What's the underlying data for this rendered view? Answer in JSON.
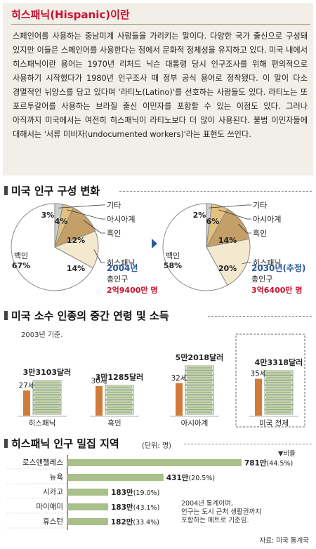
{
  "intro": {
    "title": "히스패닉(Hispanic)이란",
    "body": "스페인어를 사용하는 중남미계 사람들을 가리키는 말이다. 다양한 국가 출신으로 구성돼 있지만 이들은 스페인어를 사용한다는 점에서 문화적 정체성을 유지하고 있다. 미국 내에서 히스패닉이란 용어는 1970년 리처드 닉슨 대통령 당시 인구조사를 위해 편의적으로 사용하기 시작했다가 1980년 인구조사 때 정부 공식 용어로 정착됐다. 이 말이 다소 경멸적인 뉘앙스를 담고 있다며 '라티노(Latino)'를 선호하는 사람들도 있다. 라티노는 또 포르투갈어를 사용하는 브라질 출신 이민자를 포함할 수 있는 이점도 있다. 그러나 아직까지 미국에서는 여전히 히스패닉이 라티노보다 더 많이 사용된다. 불법 이민자들에 대해서는 '서류 미비자(undocumented workers)'라는 표현도 쓰인다."
  },
  "section1": {
    "title": "미국 인구 구성 변화"
  },
  "section2": {
    "title": "미국 소수 인종의 중간 연령 및 소득",
    "note": "2003년 기준."
  },
  "section3": {
    "title": "히스패닉 인구 밀집 지역",
    "unit": "(단위: 명)",
    "ratio_label": "▼비율",
    "footnote1": "2004년 통계이며,",
    "footnote2": "인구는 도시 근처 생활권까지",
    "footnote3": "포함하는 메트로 기준임."
  },
  "source": "자료: 미국 통계국",
  "colors": {
    "white": "#ffffff",
    "gold": "#e2c27e",
    "tan": "#c49f68",
    "cream": "#f4e9cf",
    "grey": "#cfcfcf",
    "bar_orange": "#d27a3a",
    "bar_green": "#a9c08a",
    "red": "#c8102e",
    "blue": "#2b5a9a"
  },
  "chart_data": [
    {
      "type": "pie",
      "year_label": "2004년",
      "total_label": "총인구",
      "total_value": "2억9400만 명",
      "slices": [
        {
          "name": "백인",
          "value": 67,
          "label": "67%"
        },
        {
          "name": "기타",
          "value": 3,
          "label": "3%"
        },
        {
          "name": "아시아계",
          "value": 4,
          "label": "4%"
        },
        {
          "name": "흑인",
          "value": 12,
          "label": "12%"
        },
        {
          "name": "히스패닉",
          "value": 14,
          "label": "14%"
        }
      ]
    },
    {
      "type": "pie",
      "year_label": "2030년(추정)",
      "total_label": "총인구",
      "total_value": "3억6400만 명",
      "slices": [
        {
          "name": "백인",
          "value": 58,
          "label": "58%"
        },
        {
          "name": "기타",
          "value": 2,
          "label": "2%"
        },
        {
          "name": "아시아계",
          "value": 6,
          "label": "6%"
        },
        {
          "name": "흑인",
          "value": 14,
          "label": "14%"
        },
        {
          "name": "히스패닉",
          "value": 20,
          "label": "20%"
        }
      ]
    },
    {
      "type": "bar",
      "categories": [
        "히스패닉",
        "흑인",
        "아시아계",
        "미국 전체"
      ],
      "series": [
        {
          "values": [
            27,
            30,
            32,
            35
          ],
          "labels": [
            "27세",
            "30세",
            "32세",
            "35세"
          ]
        },
        {
          "values": [
            33103,
            31285,
            52018,
            43318
          ],
          "labels": [
            "3만3103달러",
            "3만1285달러",
            "5만2018달러",
            "4만3318달러"
          ]
        }
      ]
    },
    {
      "type": "bar",
      "categories": [
        "로스앤젤레스",
        "뉴욕",
        "시카고",
        "마이애미",
        "휴스턴"
      ],
      "values": [
        7810000,
        4310000,
        1830000,
        1830000,
        1820000
      ],
      "value_labels": [
        "781만",
        "431만",
        "183만",
        "183만",
        "182만"
      ],
      "ratio_labels": [
        "(44.5%)",
        "(20.5%)",
        "(19.0%)",
        "(43.1%)",
        "(33.4%)"
      ]
    }
  ]
}
